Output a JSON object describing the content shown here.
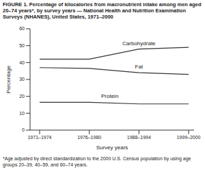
{
  "chart_data": {
    "type": "line",
    "title": "FIGURE 1. Percentage of kilocalories from macronutrient intake among men aged 20–74 years*, by survey years — National Health and Nutrition Examination Surveys (NHANES), United States, 1971–2000",
    "footnote": "*Age adjusted by direct standardization to the 2000 U.S. Census population by using age groups 20–39, 40–59, and 60–74 years.",
    "x_label": "Survey years",
    "y_label": "Percentage",
    "categories": [
      "1971–1974",
      "1976–1980",
      "1988–1994",
      "1999–2000"
    ],
    "series": [
      {
        "name": "Carbohydrate",
        "color": "#333333",
        "values": [
          42,
          42,
          48,
          49
        ]
      },
      {
        "name": "Fat",
        "color": "#333333",
        "values": [
          37,
          36.5,
          34,
          33
        ]
      },
      {
        "name": "Protein",
        "color": "#333333",
        "values": [
          16.5,
          16.5,
          15.5,
          15.5
        ]
      }
    ],
    "ylim": [
      0,
      60
    ],
    "yticks": [
      0,
      10,
      20,
      30,
      40,
      50,
      60
    ],
    "grid": false
  }
}
